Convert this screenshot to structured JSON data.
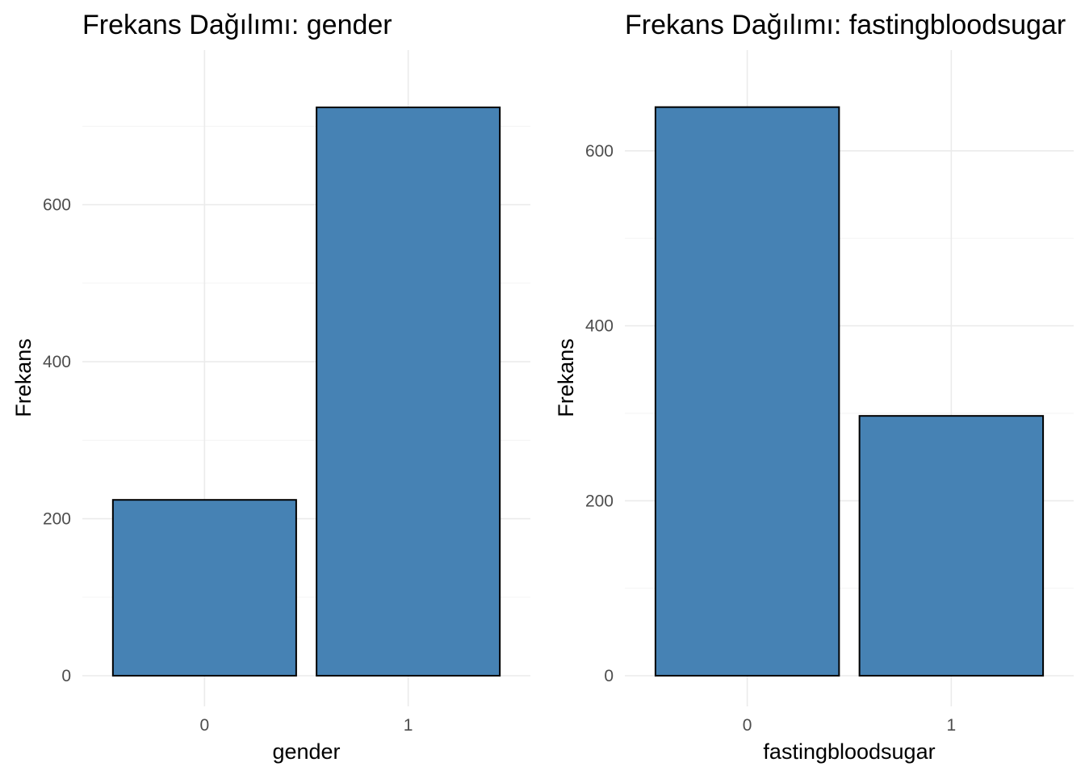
{
  "chart_data": [
    {
      "type": "bar",
      "title": "Frekans Dağılımı: gender",
      "xlabel": "gender",
      "ylabel": "Frekans",
      "categories": [
        "0",
        "1"
      ],
      "values": [
        224,
        724
      ],
      "ylim": [
        0,
        760
      ],
      "yticks": [
        0,
        200,
        400,
        600
      ],
      "grid": true,
      "legend": "none",
      "bar_color": "#4682B4",
      "bar_border_color": "#000000"
    },
    {
      "type": "bar",
      "title": "Frekans Dağılımı: fastingbloodsugar",
      "xlabel": "fastingbloodsugar",
      "ylabel": "Frekans",
      "categories": [
        "0",
        "1"
      ],
      "values": [
        650,
        297
      ],
      "ylim": [
        0,
        682
      ],
      "yticks": [
        0,
        200,
        400,
        600
      ],
      "grid": true,
      "legend": "none",
      "bar_color": "#4682B4",
      "bar_border_color": "#000000"
    }
  ]
}
